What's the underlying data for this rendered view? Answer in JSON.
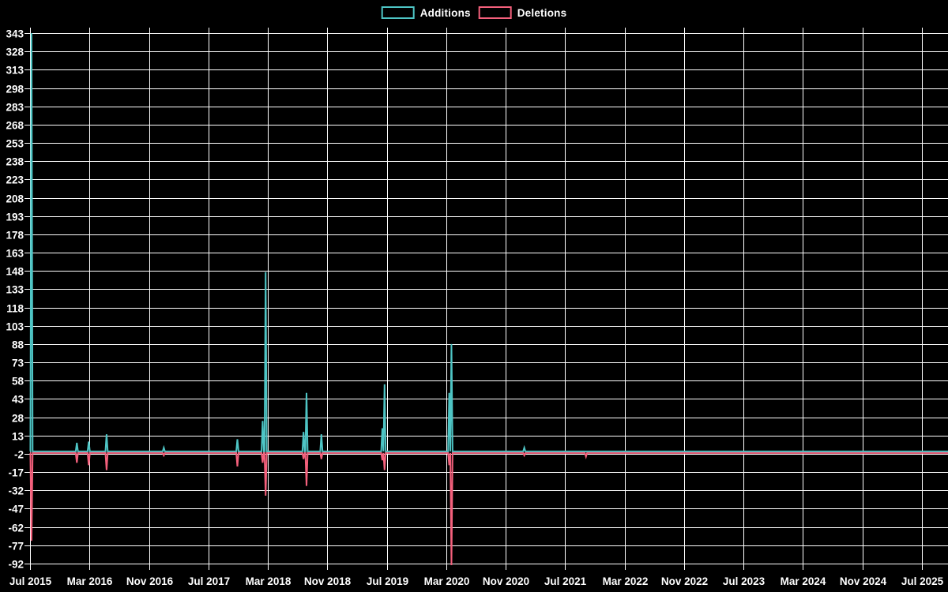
{
  "chart_data": {
    "type": "line",
    "title": "",
    "legend_position": "top-center",
    "background_color": "#000000",
    "text_color": "#ffffff",
    "grid_color": "#ffffff",
    "x_axis": {
      "label": "",
      "start": "Jul 2015",
      "end": "Jul 2025",
      "months_between_ticks": 8,
      "tick_labels": [
        "Jul 2015",
        "Mar 2016",
        "Nov 2016",
        "Jul 2017",
        "Mar 2018",
        "Nov 2018",
        "Jul 2019",
        "Mar 2020",
        "Nov 2020",
        "Jul 2021",
        "Mar 2022",
        "Nov 2022",
        "Jul 2023",
        "Mar 2024",
        "Nov 2024",
        "Jul 2025"
      ]
    },
    "y_axis": {
      "label": "",
      "min": -92,
      "max": 343,
      "step": 15,
      "tick_labels": [
        343,
        328,
        313,
        298,
        283,
        268,
        253,
        238,
        223,
        208,
        193,
        178,
        163,
        148,
        133,
        118,
        103,
        88,
        73,
        58,
        43,
        28,
        13,
        -2,
        -17,
        -32,
        -47,
        -62,
        -77,
        -92
      ]
    },
    "series": [
      {
        "name": "Additions",
        "color": "#4ec5c5",
        "baseline_value": 0,
        "spikes": [
          {
            "month": 0.2,
            "value": 343
          },
          {
            "month": 6.3,
            "value": 7
          },
          {
            "month": 7.9,
            "value": 8
          },
          {
            "month": 10.3,
            "value": 14
          },
          {
            "month": 18.0,
            "value": 3
          },
          {
            "month": 27.9,
            "value": 10
          },
          {
            "month": 31.3,
            "value": 25
          },
          {
            "month": 31.7,
            "value": 147
          },
          {
            "month": 36.8,
            "value": 16
          },
          {
            "month": 37.2,
            "value": 48
          },
          {
            "month": 39.2,
            "value": 14
          },
          {
            "month": 47.4,
            "value": 19
          },
          {
            "month": 47.7,
            "value": 55
          },
          {
            "month": 56.4,
            "value": 48
          },
          {
            "month": 56.7,
            "value": 88
          },
          {
            "month": 66.5,
            "value": 3
          }
        ]
      },
      {
        "name": "Deletions",
        "color": "#f4607c",
        "baseline_value": 0,
        "spikes": [
          {
            "month": 0.2,
            "value": -72
          },
          {
            "month": 6.3,
            "value": -8
          },
          {
            "month": 7.9,
            "value": -10
          },
          {
            "month": 10.3,
            "value": -14
          },
          {
            "month": 18.0,
            "value": -2
          },
          {
            "month": 27.9,
            "value": -11
          },
          {
            "month": 31.3,
            "value": -8
          },
          {
            "month": 31.7,
            "value": -35
          },
          {
            "month": 36.8,
            "value": -5
          },
          {
            "month": 37.2,
            "value": -27
          },
          {
            "month": 39.2,
            "value": -5
          },
          {
            "month": 47.4,
            "value": -6
          },
          {
            "month": 47.7,
            "value": -14
          },
          {
            "month": 56.4,
            "value": -10
          },
          {
            "month": 56.7,
            "value": -92
          },
          {
            "month": 66.5,
            "value": -2
          },
          {
            "month": 74.8,
            "value": -3
          }
        ]
      }
    ]
  }
}
